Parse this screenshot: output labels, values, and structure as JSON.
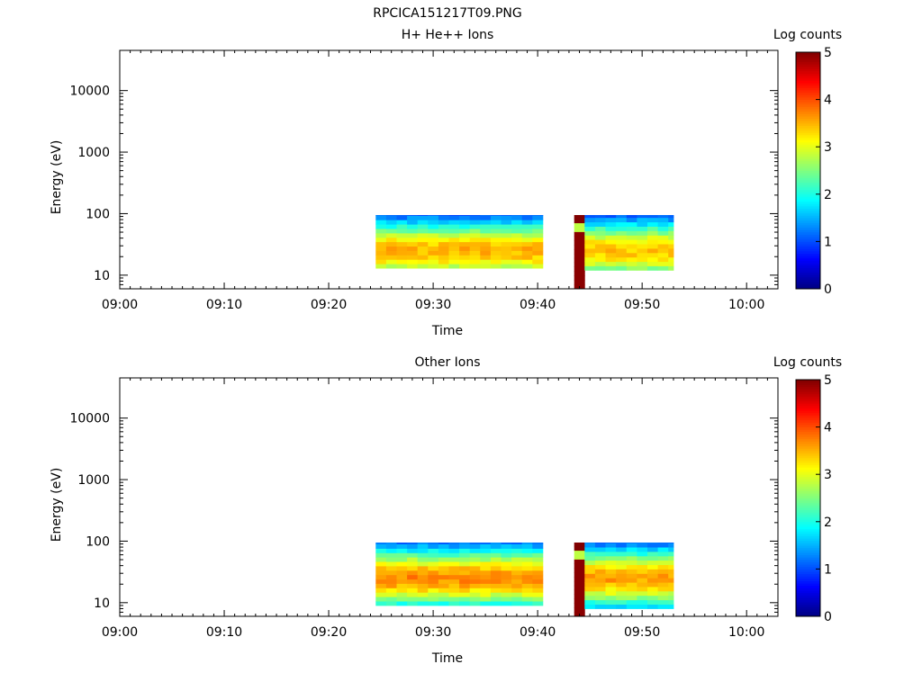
{
  "file_title": "RPCICA151217T09.PNG",
  "chart_data": [
    {
      "type": "heatmap",
      "title": "H+ He++ Ions",
      "xlabel": "Time",
      "ylabel": "Energy (eV)",
      "y_scale": "log",
      "ylim": [
        6,
        45000
      ],
      "xlim": [
        "09:00",
        "10:03"
      ],
      "x_ticks": [
        "09:00",
        "09:10",
        "09:20",
        "09:30",
        "09:40",
        "09:50",
        "10:00"
      ],
      "y_ticks": [
        "10",
        "100",
        "1000",
        "10000"
      ],
      "colorbar": {
        "label": "Log counts",
        "range": [
          0,
          5
        ],
        "ticks": [
          "0",
          "1",
          "2",
          "3",
          "4",
          "5"
        ]
      },
      "blocks": [
        {
          "time_start": "09:24:30",
          "time_end": "09:40:30",
          "energy_range": [
            13,
            95
          ],
          "peak_log_counts": 3.5,
          "peak_energy": 25
        },
        {
          "time_start": "09:43:30",
          "time_end": "09:44:30",
          "energy_range": [
            6,
            95
          ],
          "peak_log_counts": 5.0,
          "peak_energy": 90
        },
        {
          "time_start": "09:44:30",
          "time_end": "09:53:00",
          "energy_range": [
            12,
            95
          ],
          "peak_log_counts": 3.4,
          "peak_energy": 25
        }
      ]
    },
    {
      "type": "heatmap",
      "title": "Other Ions",
      "xlabel": "Time",
      "ylabel": "Energy (eV)",
      "y_scale": "log",
      "ylim": [
        6,
        45000
      ],
      "xlim": [
        "09:00",
        "10:03"
      ],
      "x_ticks": [
        "09:00",
        "09:10",
        "09:20",
        "09:30",
        "09:40",
        "09:50",
        "10:00"
      ],
      "y_ticks": [
        "10",
        "100",
        "1000",
        "10000"
      ],
      "colorbar": {
        "label": "Log counts",
        "range": [
          0,
          5
        ],
        "ticks": [
          "0",
          "1",
          "2",
          "3",
          "4",
          "5"
        ]
      },
      "blocks": [
        {
          "time_start": "09:24:30",
          "time_end": "09:40:30",
          "energy_range": [
            9,
            95
          ],
          "peak_log_counts": 3.7,
          "peak_energy": 25
        },
        {
          "time_start": "09:43:30",
          "time_end": "09:44:30",
          "energy_range": [
            6,
            95
          ],
          "peak_log_counts": 5.0,
          "peak_energy": 90
        },
        {
          "time_start": "09:44:30",
          "time_end": "09:53:00",
          "energy_range": [
            8,
            95
          ],
          "peak_log_counts": 3.6,
          "peak_energy": 25
        }
      ]
    }
  ]
}
